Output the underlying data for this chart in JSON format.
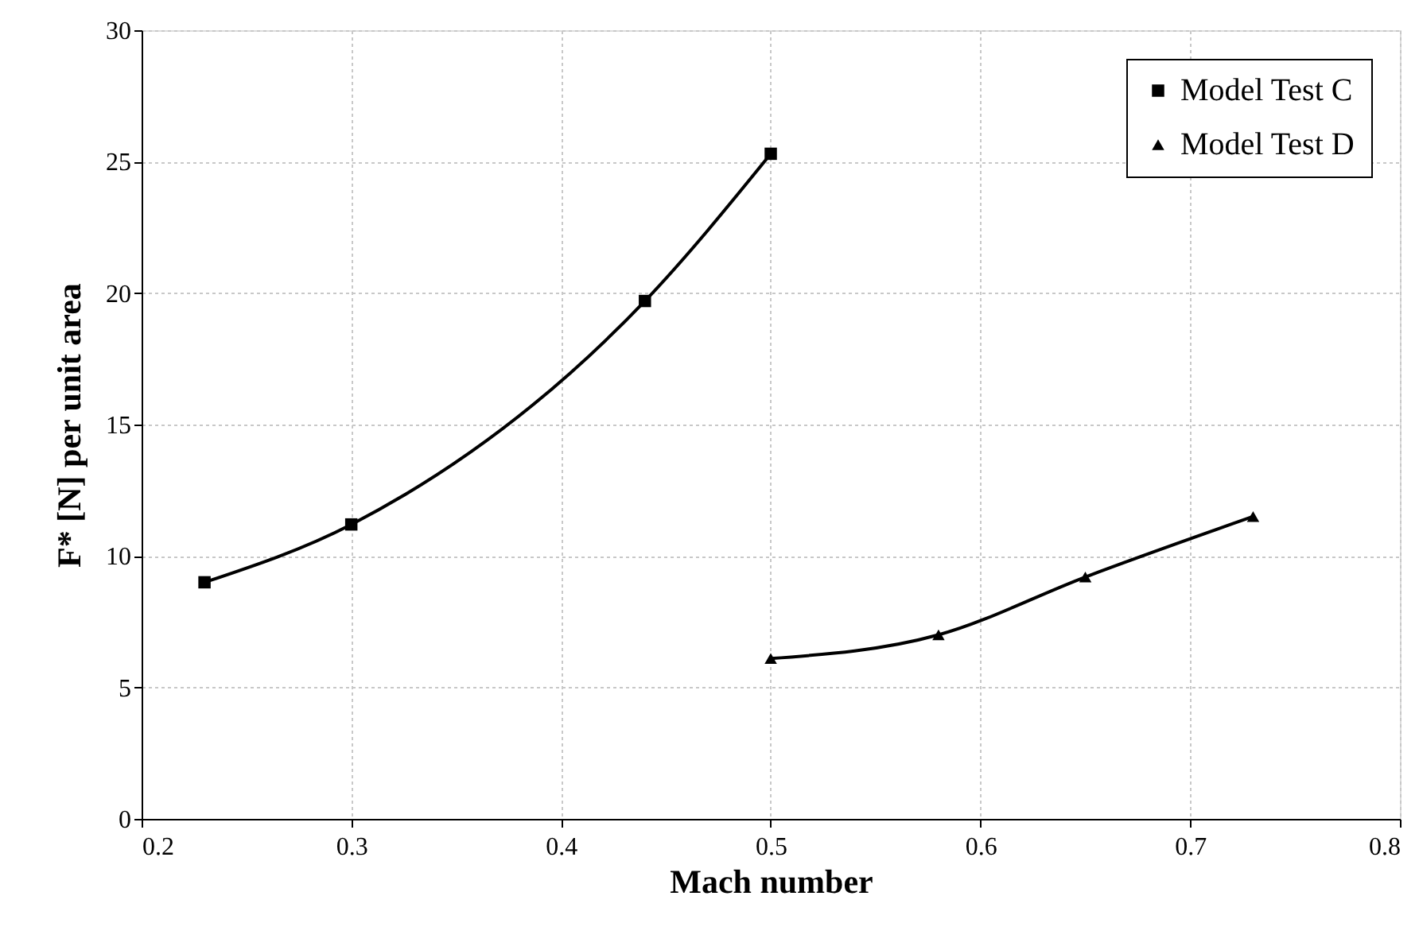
{
  "chart_data": {
    "type": "line",
    "xlabel": "Mach number",
    "ylabel": "F* [N] per unit area",
    "xlim": [
      0.2,
      0.8
    ],
    "xticks": [
      0.2,
      0.3,
      0.4,
      0.5,
      0.6,
      0.7,
      0.8
    ],
    "ylim": [
      0,
      30
    ],
    "yticks": [
      0,
      5,
      10,
      15,
      20,
      25,
      30
    ],
    "grid": true,
    "legend": "top right",
    "line_style": "solid",
    "series": [
      {
        "name": "Model Test C",
        "color": "#000000",
        "marker": "square",
        "x": [
          0.23,
          0.3,
          0.44,
          0.5
        ],
        "values": [
          9.0,
          11.2,
          19.7,
          25.3
        ]
      },
      {
        "name": "Model Test D",
        "color": "#000000",
        "marker": "triangle",
        "x": [
          0.5,
          0.58,
          0.65,
          0.73
        ],
        "values": [
          6.1,
          7.0,
          9.2,
          11.5
        ]
      }
    ]
  }
}
